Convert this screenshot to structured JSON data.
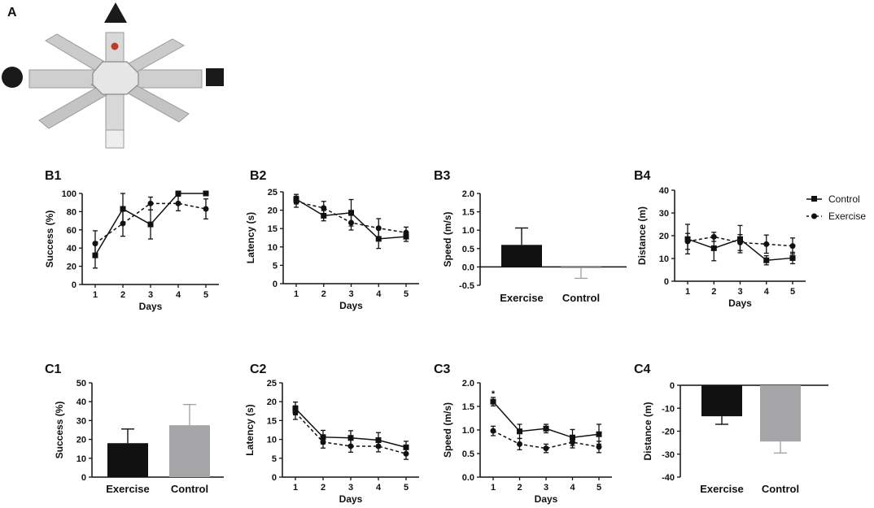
{
  "panel_labels": {
    "A": "A",
    "B1": "B1",
    "B2": "B2",
    "B3": "B3",
    "B4": "B4",
    "C1": "C1",
    "C2": "C2",
    "C3": "C3",
    "C4": "C4"
  },
  "legend": {
    "control": "Control",
    "exercise": "Exercise"
  },
  "colors": {
    "black": "#111111",
    "gray": "#a5a5a8",
    "maze_wall": "#c8c8c8",
    "maze_top": "#e4e4e4",
    "red_dot": "#c0392b"
  },
  "chart_data": [
    {
      "id": "B1",
      "type": "line",
      "xlabel": "Days",
      "ylabel": "Success (%)",
      "ylim": [
        0,
        100
      ],
      "yticks": [
        0,
        20,
        40,
        60,
        80,
        100
      ],
      "x": [
        1,
        2,
        3,
        4,
        5
      ],
      "series": [
        {
          "name": "Control",
          "style": "solid",
          "values": [
            32,
            83,
            66,
            100,
            100
          ],
          "err": [
            14,
            17,
            16,
            0,
            0
          ]
        },
        {
          "name": "Exercise",
          "style": "dashed",
          "values": [
            45,
            67,
            89,
            89,
            83
          ],
          "err": [
            14,
            14,
            7,
            8,
            11
          ]
        }
      ]
    },
    {
      "id": "B2",
      "type": "line",
      "xlabel": "Days",
      "ylabel": "Latency (s)",
      "ylim": [
        0,
        25
      ],
      "yticks": [
        0,
        5,
        10,
        15,
        20,
        25
      ],
      "x": [
        1,
        2,
        3,
        4,
        5
      ],
      "series": [
        {
          "name": "Control",
          "style": "solid",
          "values": [
            23,
            18.5,
            19.3,
            12.2,
            12.8
          ],
          "err": [
            1.3,
            1.4,
            3.6,
            2.6,
            1.3
          ]
        },
        {
          "name": "Exercise",
          "style": "dashed",
          "values": [
            22.3,
            20.6,
            16.6,
            15.1,
            13.9
          ],
          "err": [
            1.5,
            1.8,
            2.0,
            2.6,
            1.5
          ]
        }
      ]
    },
    {
      "id": "B3",
      "type": "bar",
      "ylabel": "Speed (m/s)",
      "ylim": [
        -0.5,
        2.0
      ],
      "yticks": [
        -0.5,
        0.0,
        0.5,
        1.0,
        1.5,
        2.0
      ],
      "ytick_labels": [
        "-0.5",
        "0.0",
        "0.5",
        "1.0",
        "1.5",
        "2.0"
      ],
      "categories": [
        "Exercise",
        "Control"
      ],
      "values": [
        0.6,
        -0.03
      ],
      "err": [
        0.46,
        0.28
      ],
      "bar_colors": [
        "black",
        "gray"
      ]
    },
    {
      "id": "B4",
      "type": "line",
      "xlabel": "Days",
      "ylabel": "Distance (m)",
      "ylim": [
        0,
        40
      ],
      "yticks": [
        0,
        10,
        20,
        30,
        40
      ],
      "x": [
        1,
        2,
        3,
        4,
        5
      ],
      "series": [
        {
          "name": "Control",
          "style": "solid",
          "values": [
            18.5,
            14.5,
            18.5,
            9.2,
            10.2
          ],
          "err": [
            6.5,
            5.5,
            6.0,
            2.0,
            2.5
          ]
        },
        {
          "name": "Exercise",
          "style": "dashed",
          "values": [
            17.5,
            19.5,
            17,
            16.3,
            15.5
          ],
          "err": [
            3.5,
            2.0,
            3.5,
            4.0,
            3.5
          ]
        }
      ]
    },
    {
      "id": "C1",
      "type": "bar",
      "ylabel": "Success (%)",
      "ylim": [
        0,
        50
      ],
      "yticks": [
        0,
        10,
        20,
        30,
        40,
        50
      ],
      "categories": [
        "Exercise",
        "Control"
      ],
      "values": [
        18,
        27.5
      ],
      "err": [
        7.5,
        11
      ],
      "bar_colors": [
        "black",
        "gray"
      ]
    },
    {
      "id": "C2",
      "type": "line",
      "xlabel": "Days",
      "ylabel": "Latency (s)",
      "ylim": [
        0,
        25
      ],
      "yticks": [
        0,
        5,
        10,
        15,
        20,
        25
      ],
      "x": [
        1,
        2,
        3,
        4,
        5
      ],
      "series": [
        {
          "name": "Control",
          "style": "solid",
          "values": [
            18.2,
            10.6,
            10.4,
            9.8,
            7.9
          ],
          "err": [
            1.7,
            1.8,
            1.9,
            2.0,
            1.6
          ]
        },
        {
          "name": "Exercise",
          "style": "dashed",
          "values": [
            17.1,
            9.3,
            8.2,
            8.2,
            6.2
          ],
          "err": [
            1.8,
            1.6,
            1.6,
            1.5,
            1.5
          ]
        }
      ]
    },
    {
      "id": "C3",
      "type": "line",
      "xlabel": "Days",
      "ylabel": "Speed (m/s)",
      "ylim": [
        0,
        2.0
      ],
      "yticks": [
        0,
        0.5,
        1.0,
        1.5,
        2.0
      ],
      "ytick_labels": [
        "0.0",
        "0.5",
        "1.0",
        "1.5",
        "2.0"
      ],
      "x": [
        1,
        2,
        3,
        4,
        5
      ],
      "series": [
        {
          "name": "Control",
          "style": "solid",
          "values": [
            1.6,
            0.97,
            1.03,
            0.84,
            0.91
          ],
          "err": [
            0.09,
            0.15,
            0.09,
            0.17,
            0.21
          ]
        },
        {
          "name": "Exercise",
          "style": "dashed",
          "values": [
            0.98,
            0.7,
            0.61,
            0.74,
            0.64
          ],
          "err": [
            0.1,
            0.12,
            0.09,
            0.12,
            0.12
          ]
        }
      ],
      "annotations": [
        {
          "text": "*",
          "x": 1,
          "y": 1.78
        }
      ]
    },
    {
      "id": "C4",
      "type": "bar",
      "ylabel": "Distance (m)",
      "ylim": [
        -40,
        0
      ],
      "yticks": [
        -40,
        -30,
        -20,
        -10,
        0
      ],
      "categories": [
        "Exercise",
        "Control"
      ],
      "values": [
        -13.5,
        -24.5
      ],
      "err": [
        3.5,
        5
      ],
      "bar_colors": [
        "black",
        "gray"
      ]
    }
  ]
}
